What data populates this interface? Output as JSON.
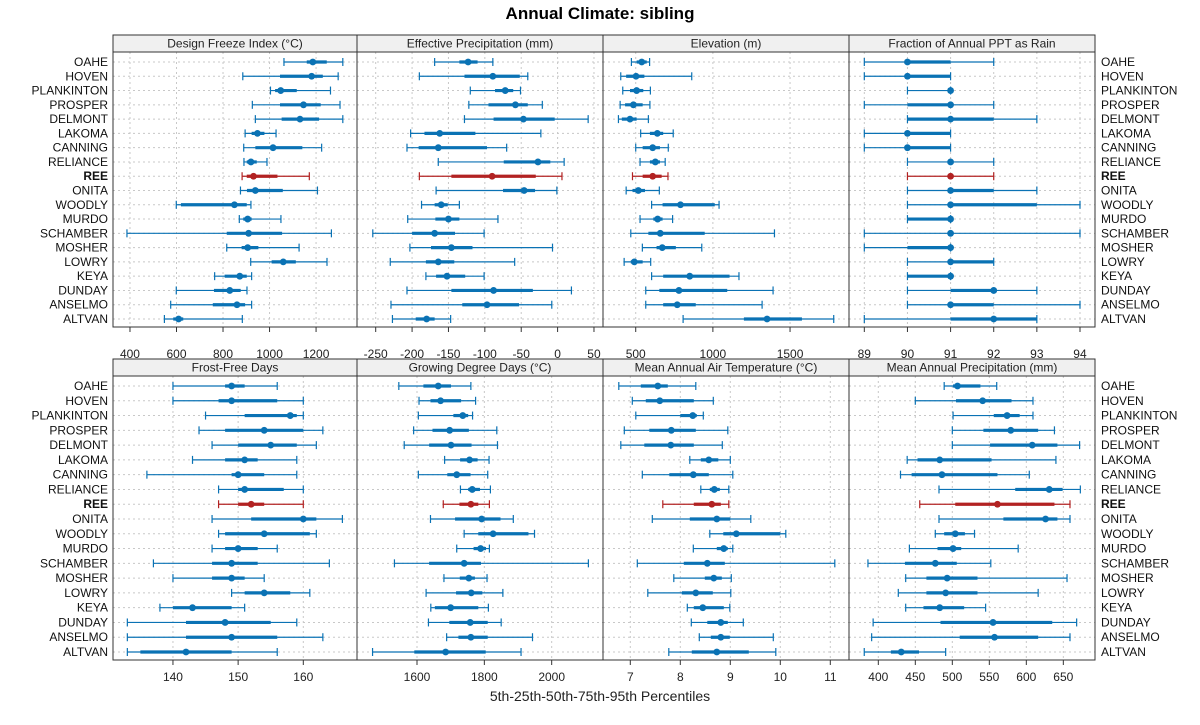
{
  "chart_data": {
    "type": "dot-interval",
    "title": "Annual Climate: sibling",
    "xlabel": "5th-25th-50th-75th-95th Percentiles",
    "highlight": "REE",
    "colors": {
      "normal": "#0a72b4",
      "highlight": "#b22222",
      "strip": "#f0f0f0",
      "grid": "#c8c8c8"
    },
    "stations": [
      "OAHE",
      "HOVEN",
      "PLANKINTON",
      "PROSPER",
      "DELMONT",
      "LAKOMA",
      "CANNING",
      "RELIANCE",
      "REE",
      "ONITA",
      "WOODLY",
      "MURDO",
      "SCHAMBER",
      "MOSHER",
      "LOWRY",
      "KEYA",
      "DUNDAY",
      "ANSELMO",
      "ALTVAN"
    ],
    "percentiles": [
      "p5",
      "p25",
      "p50",
      "p75",
      "p95"
    ],
    "panels": [
      {
        "title": "Design Freeze Index (°C)",
        "xlim": [
          327,
          1376
        ],
        "ticks": [
          400,
          600,
          800,
          1000,
          1200
        ],
        "values": [
          [
            1062,
            1160,
            1186,
            1246,
            1315
          ],
          [
            885,
            1045,
            1181,
            1229,
            1295
          ],
          [
            1004,
            1024,
            1048,
            1117,
            1262
          ],
          [
            926,
            1045,
            1146,
            1220,
            1303
          ],
          [
            939,
            1052,
            1131,
            1213,
            1315
          ],
          [
            895,
            923,
            948,
            978,
            1028
          ],
          [
            889,
            939,
            1015,
            1141,
            1224
          ],
          [
            890,
            902,
            920,
            945,
            989
          ],
          [
            882,
            902,
            931,
            1034,
            1171
          ],
          [
            875,
            903,
            939,
            1057,
            1206
          ],
          [
            599,
            619,
            849,
            902,
            920
          ],
          [
            870,
            887,
            906,
            923,
            1049
          ],
          [
            387,
            816,
            910,
            1054,
            1266
          ],
          [
            816,
            880,
            906,
            952,
            1127
          ],
          [
            919,
            1009,
            1059,
            1113,
            1247
          ],
          [
            764,
            807,
            872,
            902,
            923
          ],
          [
            599,
            761,
            829,
            876,
            903
          ],
          [
            575,
            756,
            860,
            895,
            923
          ],
          [
            548,
            586,
            609,
            629,
            883
          ]
        ]
      },
      {
        "title": "Effective Precipitation (mm)",
        "xlim": [
          -275.7,
          62.4
        ],
        "ticks": [
          -250,
          -200,
          -150,
          -100,
          -50,
          0,
          50
        ],
        "values": [
          [
            -169,
            -135,
            -123,
            -110,
            -89
          ],
          [
            -190,
            -128,
            -89,
            -52,
            -41
          ],
          [
            -120,
            -86,
            -72,
            -61,
            -51
          ],
          [
            -122,
            -95,
            -58,
            -41,
            -21
          ],
          [
            -128,
            -88,
            -47,
            -4,
            42
          ],
          [
            -202,
            -183,
            -162,
            -113,
            -23
          ],
          [
            -207,
            -191,
            -164,
            -97,
            -70
          ],
          [
            -164,
            -74,
            -27,
            -10,
            9
          ],
          [
            -190,
            -146,
            -90,
            -30,
            6
          ],
          [
            -167,
            -75,
            -46,
            -31,
            -1
          ],
          [
            -187,
            -169,
            -160,
            -151,
            -135
          ],
          [
            -206,
            -168,
            -150,
            -135,
            -82
          ],
          [
            -254,
            -200,
            -169,
            -141,
            -101
          ],
          [
            -203,
            -174,
            -146,
            -117,
            -7
          ],
          [
            -230,
            -181,
            -164,
            -142,
            -59
          ],
          [
            -181,
            -167,
            -152,
            -127,
            -101
          ],
          [
            -207,
            -146,
            -88,
            -34,
            19
          ],
          [
            -229,
            -131,
            -97,
            -53,
            -8
          ],
          [
            -227,
            -195,
            -180,
            -169,
            -147
          ]
        ]
      },
      {
        "title": "Elevation (m)",
        "xlim": [
          288,
          1882
        ],
        "ticks": [
          500,
          1000,
          1500
        ],
        "values": [
          [
            472,
            506,
            539,
            571,
            590
          ],
          [
            403,
            438,
            502,
            556,
            863
          ],
          [
            416,
            463,
            506,
            549,
            595
          ],
          [
            399,
            431,
            485,
            545,
            592
          ],
          [
            388,
            410,
            463,
            506,
            582
          ],
          [
            532,
            592,
            640,
            678,
            743
          ],
          [
            500,
            545,
            610,
            657,
            711
          ],
          [
            528,
            592,
            627,
            657,
            691
          ],
          [
            479,
            545,
            610,
            668,
            709
          ],
          [
            438,
            479,
            517,
            560,
            653
          ],
          [
            603,
            674,
            790,
            1012,
            1040
          ],
          [
            528,
            614,
            642,
            674,
            739
          ],
          [
            468,
            582,
            659,
            947,
            1399
          ],
          [
            543,
            635,
            672,
            760,
            928
          ],
          [
            425,
            468,
            491,
            545,
            597
          ],
          [
            603,
            678,
            850,
            1108,
            1169
          ],
          [
            565,
            653,
            780,
            1093,
            1390
          ],
          [
            565,
            678,
            769,
            889,
            1319
          ],
          [
            807,
            1201,
            1351,
            1577,
            1783
          ]
        ]
      },
      {
        "title": "Fraction of Annual PPT as Rain",
        "xlim": [
          88.645,
          94.348
        ],
        "ticks": [
          89,
          90,
          91,
          92,
          93,
          94
        ],
        "values": [
          [
            89,
            90,
            90,
            91,
            92
          ],
          [
            89,
            90,
            90,
            91,
            91
          ],
          [
            90,
            91,
            91,
            91,
            91
          ],
          [
            89,
            90,
            91,
            91,
            92
          ],
          [
            90,
            90,
            91,
            92,
            93
          ],
          [
            89,
            90,
            90,
            91,
            91
          ],
          [
            89,
            90,
            90,
            91,
            91
          ],
          [
            90,
            91,
            91,
            91,
            92
          ],
          [
            90,
            91,
            91,
            91,
            92
          ],
          [
            90,
            91,
            91,
            92,
            93
          ],
          [
            90,
            91,
            91,
            93,
            94
          ],
          [
            90,
            90,
            91,
            91,
            91
          ],
          [
            89,
            91,
            91,
            91,
            94
          ],
          [
            89,
            90,
            91,
            91,
            91
          ],
          [
            90,
            91,
            91,
            92,
            92
          ],
          [
            90,
            90,
            91,
            91,
            91
          ],
          [
            90,
            91,
            92,
            92,
            93
          ],
          [
            90,
            91,
            91,
            92,
            94
          ],
          [
            89,
            91,
            92,
            93,
            93
          ]
        ]
      },
      {
        "title": "Frost-Free Days",
        "xlim": [
          130.8,
          168.24
        ],
        "ticks": [
          140,
          150,
          160
        ],
        "values": [
          [
            140,
            148,
            149,
            151,
            156
          ],
          [
            140,
            147,
            149,
            156,
            160
          ],
          [
            145,
            151,
            158,
            159,
            160
          ],
          [
            144,
            148,
            154,
            160,
            163
          ],
          [
            146,
            150,
            155,
            159,
            162
          ],
          [
            143,
            148,
            151,
            153,
            159
          ],
          [
            136,
            149,
            150,
            154,
            159
          ],
          [
            147,
            150,
            151,
            157,
            160
          ],
          [
            147,
            150,
            152,
            154,
            160
          ],
          [
            146,
            152,
            160,
            162,
            166
          ],
          [
            147,
            148,
            154,
            161,
            162
          ],
          [
            146,
            148,
            150,
            153,
            156
          ],
          [
            137,
            146,
            149,
            153,
            164
          ],
          [
            140,
            146,
            149,
            151,
            154
          ],
          [
            149,
            151,
            154,
            158,
            161
          ],
          [
            138,
            140,
            143,
            149,
            151
          ],
          [
            133,
            142,
            148,
            155,
            159
          ],
          [
            133,
            142,
            149,
            156,
            163
          ],
          [
            133,
            135,
            142,
            149,
            156
          ]
        ]
      },
      {
        "title": "Growing Degree Days (°C)",
        "xlim": [
          1421.8,
          2152.4
        ],
        "ticks": [
          1600,
          1800,
          2000
        ],
        "values": [
          [
            1546,
            1619,
            1663,
            1701,
            1760
          ],
          [
            1606,
            1640,
            1670,
            1731,
            1774
          ],
          [
            1604,
            1708,
            1736,
            1752,
            1765
          ],
          [
            1590,
            1646,
            1697,
            1754,
            1837
          ],
          [
            1562,
            1636,
            1701,
            1762,
            1839
          ],
          [
            1682,
            1728,
            1756,
            1780,
            1814
          ],
          [
            1604,
            1690,
            1718,
            1759,
            1810
          ],
          [
            1729,
            1752,
            1764,
            1787,
            1818
          ],
          [
            1678,
            1726,
            1760,
            1782,
            1815
          ],
          [
            1640,
            1713,
            1792,
            1848,
            1886
          ],
          [
            1740,
            1782,
            1826,
            1931,
            1949
          ],
          [
            1718,
            1768,
            1789,
            1805,
            1815
          ],
          [
            1533,
            1636,
            1740,
            1790,
            2109
          ],
          [
            1680,
            1727,
            1754,
            1772,
            1808
          ],
          [
            1627,
            1716,
            1761,
            1794,
            1855
          ],
          [
            1641,
            1653,
            1700,
            1782,
            1812
          ],
          [
            1634,
            1696,
            1758,
            1810,
            1850
          ],
          [
            1688,
            1723,
            1760,
            1810,
            1943
          ],
          [
            1468,
            1592,
            1685,
            1804,
            1909
          ]
        ]
      },
      {
        "title": "Mean Annual Air Temperature (°C)",
        "xlim": [
          6.454,
          11.374
        ],
        "ticks": [
          7,
          8,
          9,
          10,
          11
        ],
        "values": [
          [
            6.77,
            7.21,
            7.55,
            7.75,
            8.31
          ],
          [
            7.04,
            7.31,
            7.59,
            8.27,
            8.66
          ],
          [
            7.11,
            8.0,
            8.25,
            8.33,
            8.46
          ],
          [
            6.88,
            7.38,
            7.82,
            8.31,
            8.95
          ],
          [
            6.81,
            7.28,
            7.81,
            8.27,
            8.84
          ],
          [
            8.19,
            8.41,
            8.57,
            8.76,
            9.0
          ],
          [
            7.24,
            7.78,
            8.26,
            8.57,
            9.05
          ],
          [
            8.41,
            8.59,
            8.68,
            8.79,
            8.97
          ],
          [
            7.65,
            8.27,
            8.63,
            8.81,
            8.97
          ],
          [
            7.44,
            8.19,
            8.73,
            9.0,
            9.41
          ],
          [
            8.59,
            8.86,
            9.12,
            10.0,
            10.11
          ],
          [
            8.26,
            8.73,
            8.87,
            8.95,
            9.05
          ],
          [
            7.14,
            8.07,
            8.54,
            8.89,
            11.09
          ],
          [
            7.87,
            8.49,
            8.67,
            8.83,
            9.02
          ],
          [
            7.35,
            8.03,
            8.31,
            8.65,
            9.01
          ],
          [
            8.14,
            8.27,
            8.45,
            8.87,
            8.99
          ],
          [
            8.22,
            8.54,
            8.81,
            8.95,
            9.26
          ],
          [
            8.38,
            8.61,
            8.81,
            8.99,
            9.86
          ],
          [
            7.77,
            8.23,
            8.73,
            9.37,
            9.91
          ]
        ]
      },
      {
        "title": "Mean Annual Precipitation (mm)",
        "xlim": [
          360.4,
          692.8
        ],
        "ticks": [
          400,
          450,
          500,
          550,
          600,
          650
        ],
        "values": [
          [
            489,
            501,
            507,
            538,
            560
          ],
          [
            450,
            505,
            541,
            580,
            609
          ],
          [
            501,
            556,
            574,
            591,
            609
          ],
          [
            500,
            542,
            579,
            616,
            638
          ],
          [
            500,
            551,
            608,
            642,
            672
          ],
          [
            439,
            453,
            483,
            553,
            640
          ],
          [
            430,
            445,
            486,
            561,
            604
          ],
          [
            482,
            585,
            631,
            649,
            673
          ],
          [
            456,
            504,
            561,
            638,
            659
          ],
          [
            482,
            569,
            626,
            642,
            659
          ],
          [
            477,
            489,
            504,
            517,
            530
          ],
          [
            442,
            480,
            501,
            512,
            589
          ],
          [
            386,
            436,
            477,
            506,
            552
          ],
          [
            437,
            465,
            493,
            534,
            655
          ],
          [
            427,
            465,
            491,
            534,
            616
          ],
          [
            437,
            461,
            483,
            516,
            545
          ],
          [
            393,
            484,
            555,
            635,
            668
          ],
          [
            391,
            510,
            557,
            616,
            659
          ],
          [
            381,
            417,
            431,
            455,
            491
          ]
        ]
      }
    ]
  }
}
